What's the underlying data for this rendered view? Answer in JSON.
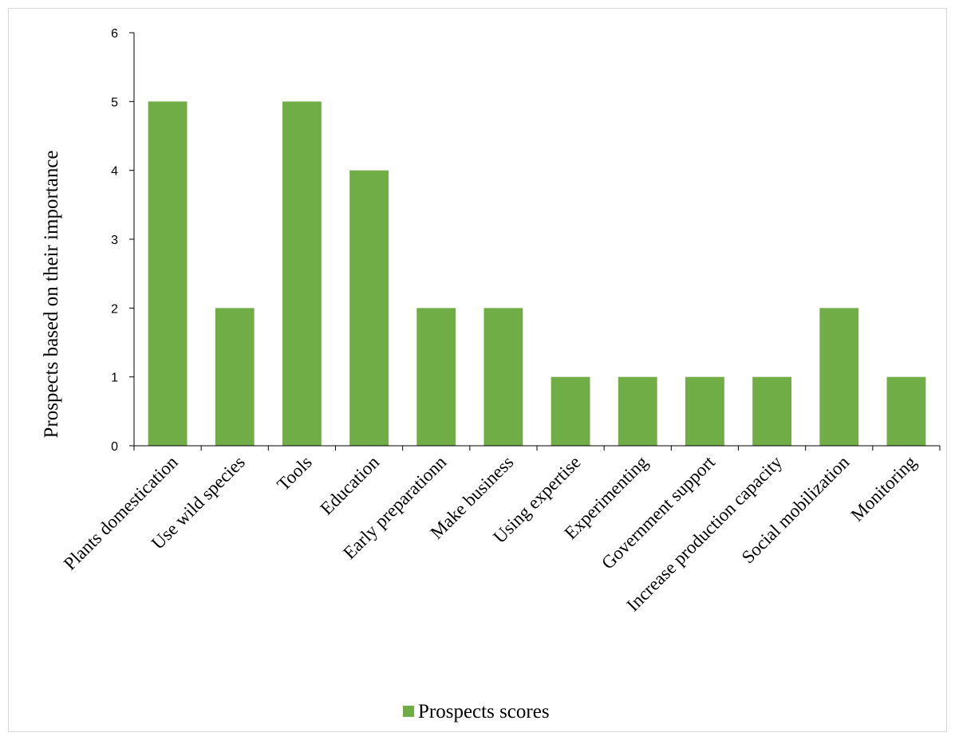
{
  "chart_data": {
    "type": "bar",
    "title": "",
    "xlabel": "",
    "ylabel": "Prospects based on their importance",
    "ylim": [
      0,
      6
    ],
    "yticks": [
      0,
      1,
      2,
      3,
      4,
      5,
      6
    ],
    "grid": false,
    "legend_position": "bottom",
    "categories": [
      "Plants domestication",
      "Use wild species",
      "Tools",
      "Education",
      "Early preparationn",
      "Make business",
      "Using expertise",
      "Experimenting",
      "Government support",
      "Increase production capacity",
      "Social mobilization",
      "Monitoring"
    ],
    "series": [
      {
        "name": "Prospects scores",
        "color": "#70ad47",
        "values": [
          5,
          2,
          5,
          4,
          2,
          2,
          1,
          1,
          1,
          1,
          2,
          1
        ]
      }
    ]
  }
}
